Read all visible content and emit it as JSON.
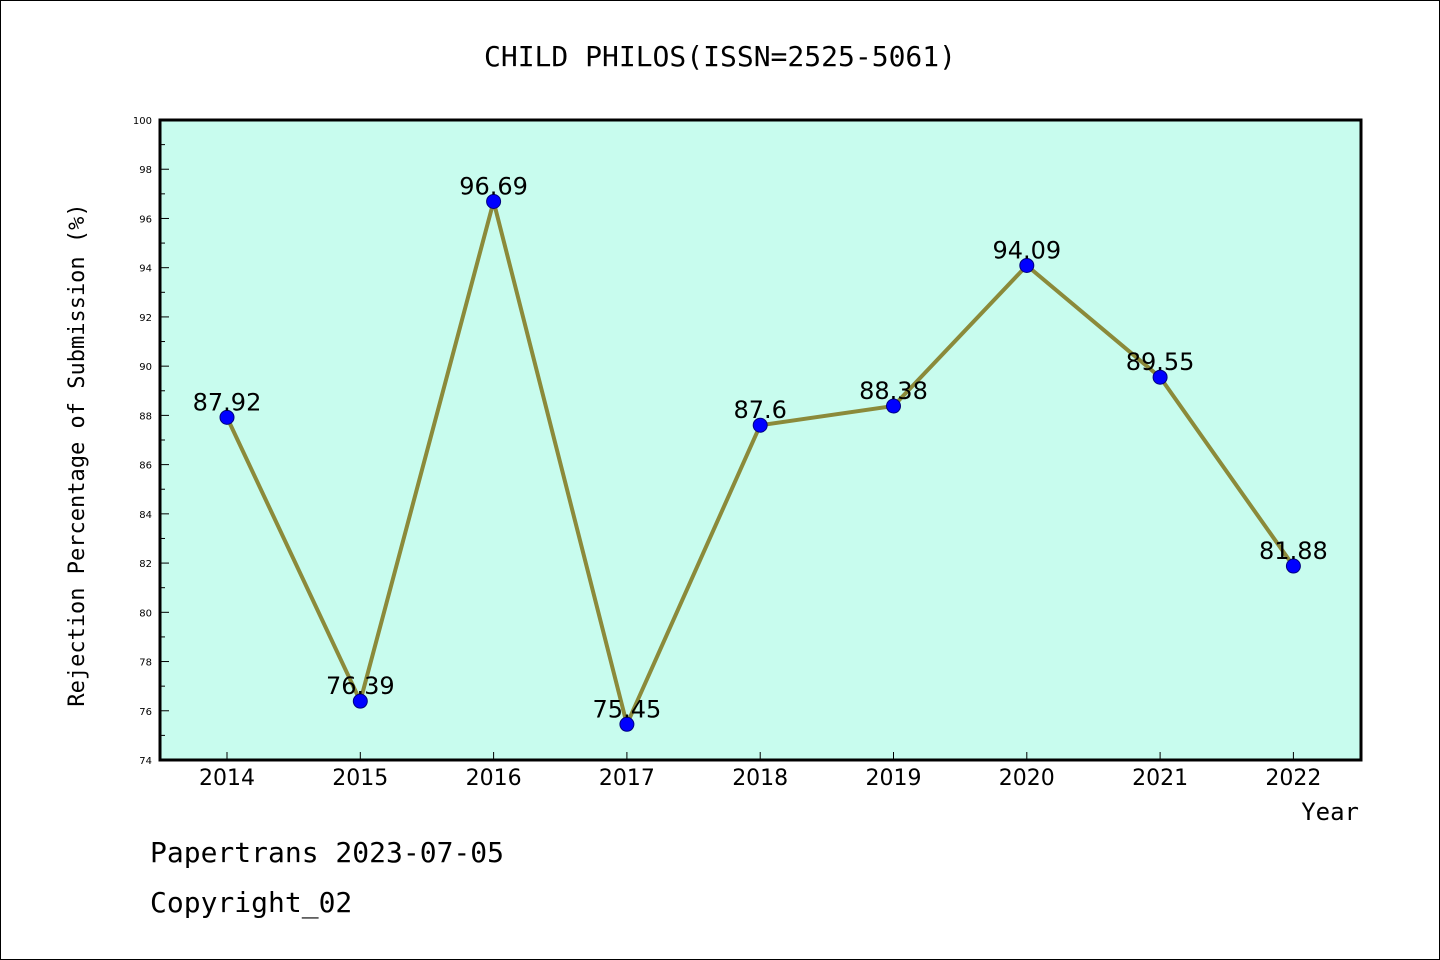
{
  "chart_data": {
    "type": "line",
    "title": "CHILD PHILOS(ISSN=2525-5061)",
    "xlabel": "Year",
    "ylabel": "Rejection Percentage of Submission (%)",
    "categories": [
      "2014",
      "2015",
      "2016",
      "2017",
      "2018",
      "2019",
      "2020",
      "2021",
      "2022"
    ],
    "values": [
      87.92,
      76.39,
      96.69,
      75.45,
      87.6,
      88.38,
      94.09,
      89.55,
      81.88
    ],
    "data_labels": [
      "87.92",
      "76.39",
      "96.69",
      "75.45",
      "87.6",
      "88.38",
      "94.09",
      "89.55",
      "81.88"
    ],
    "ylim": [
      74,
      100
    ],
    "yticks": [
      "74",
      "76",
      "78",
      "80",
      "82",
      "84",
      "86",
      "88",
      "90",
      "92",
      "94",
      "96",
      "98",
      "100"
    ],
    "grid": false,
    "legend": "none",
    "colors": {
      "plot_background": "#c8fcee",
      "line": "#8b8a3a",
      "marker": "#0000ff",
      "marker_edge": "#000080"
    }
  },
  "footer": {
    "line1": "Papertrans 2023-07-05",
    "line2": "Copyright_02"
  }
}
